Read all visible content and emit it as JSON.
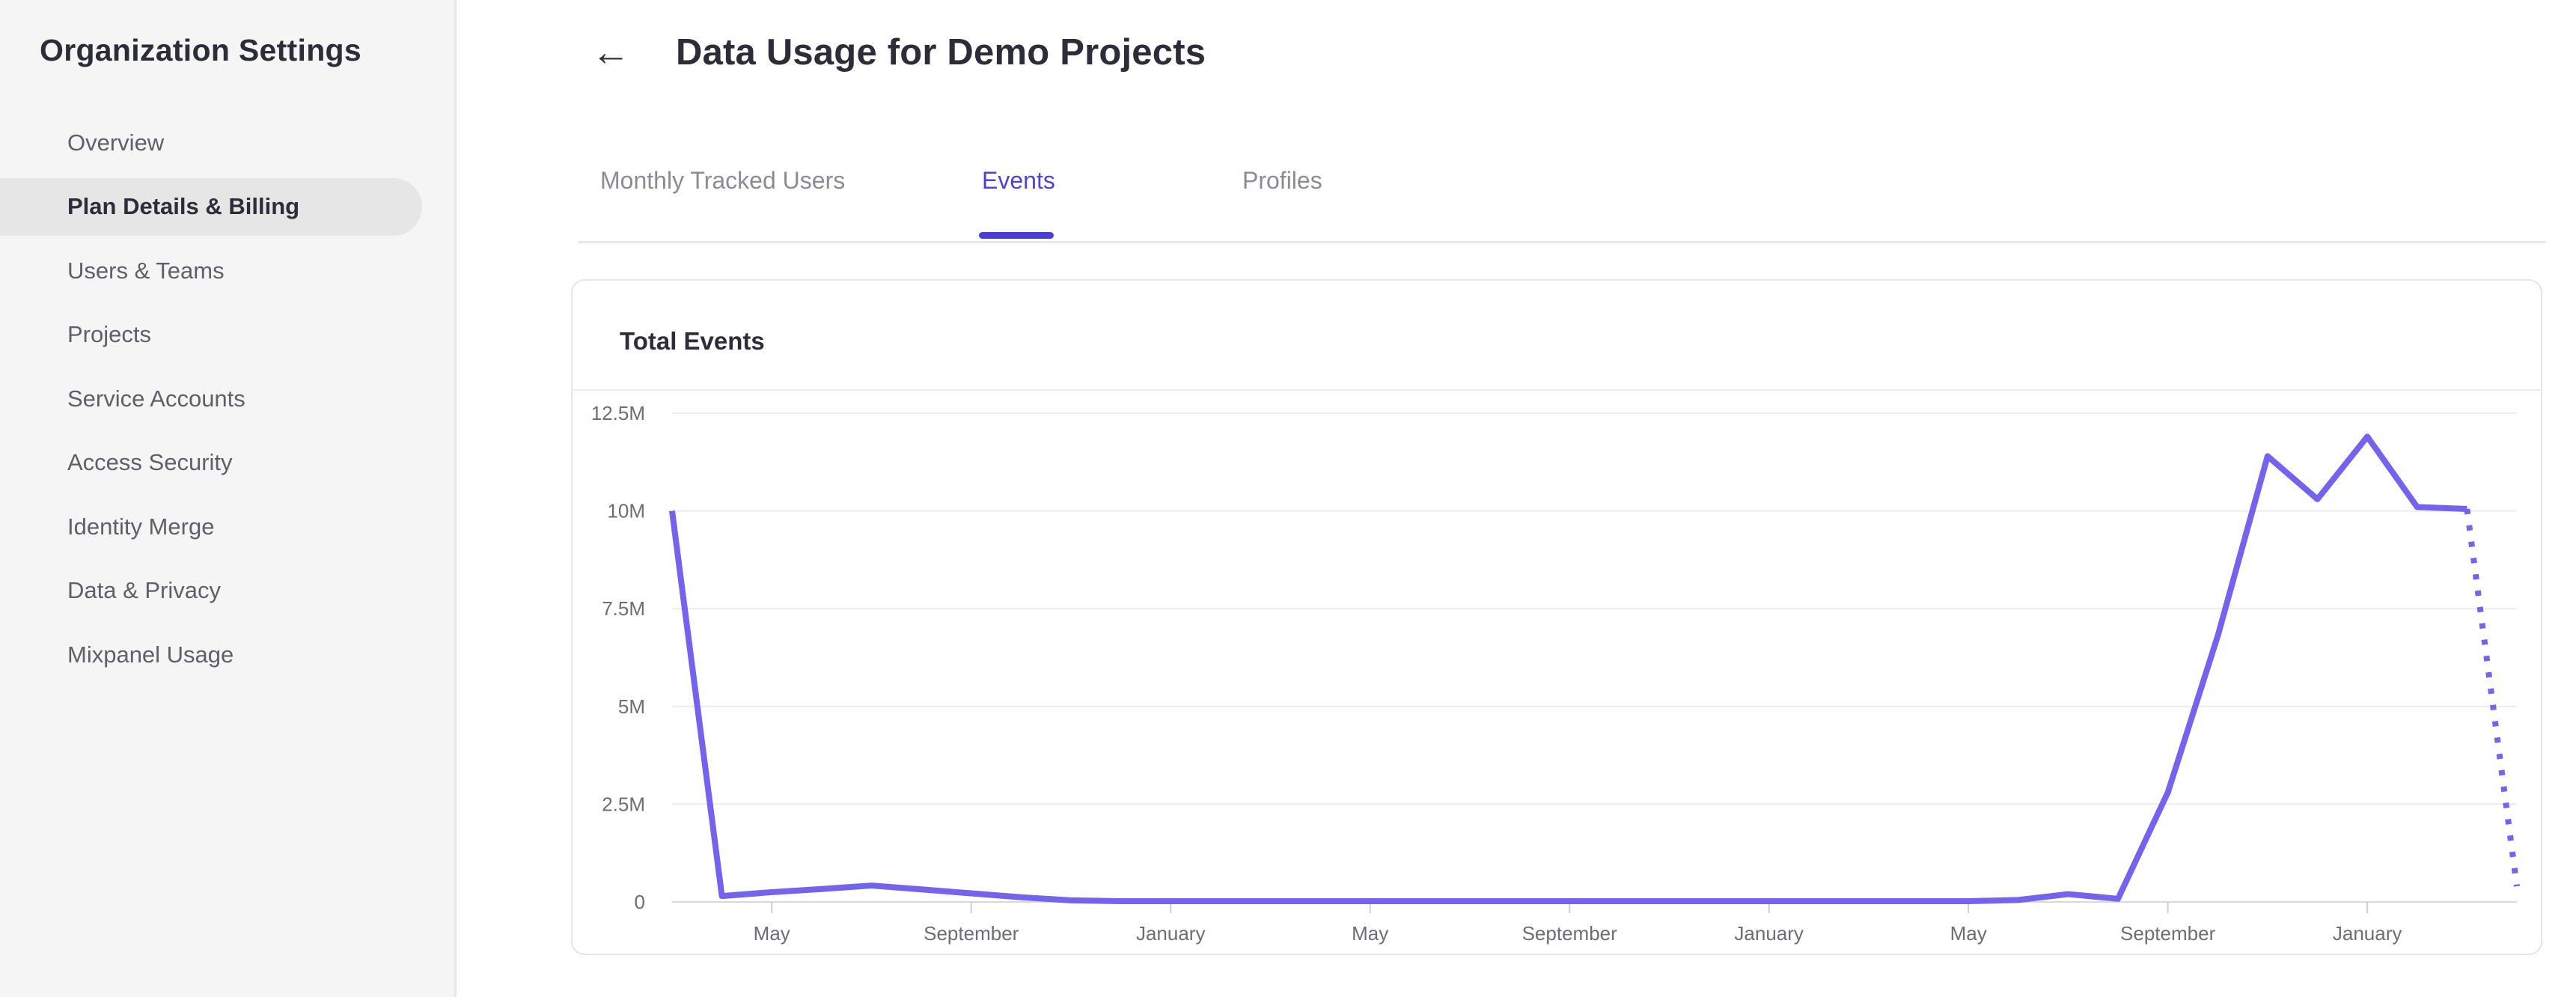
{
  "sidebar": {
    "title": "Organization Settings",
    "items": [
      {
        "label": "Overview",
        "selected": false
      },
      {
        "label": "Plan Details & Billing",
        "selected": true
      },
      {
        "label": "Users & Teams",
        "selected": false
      },
      {
        "label": "Projects",
        "selected": false
      },
      {
        "label": "Service Accounts",
        "selected": false
      },
      {
        "label": "Access Security",
        "selected": false
      },
      {
        "label": "Identity Merge",
        "selected": false
      },
      {
        "label": "Data & Privacy",
        "selected": false
      },
      {
        "label": "Mixpanel Usage",
        "selected": false
      }
    ]
  },
  "header": {
    "back_icon": "←",
    "title": "Data Usage for Demo Projects"
  },
  "tabs": [
    {
      "label": "Monthly Tracked Users",
      "active": false
    },
    {
      "label": "Events",
      "active": true
    },
    {
      "label": "Profiles",
      "active": false
    }
  ],
  "card": {
    "title": "Total Events"
  },
  "colors": {
    "accent": "#4b3ed8",
    "active_tab_text": "#4f42d9",
    "chart_line": "#7463ec",
    "gridline": "#ececec",
    "baseline": "#d8d8d8",
    "tick": "#cfcfcf",
    "axis_text": "#6d6d74",
    "sidebar_bg": "#f5f5f6",
    "selected_pill_bg": "#e6e6e7",
    "dark_text": "#2d2d38",
    "muted_text": "#5f5f67",
    "inactive_tab_text": "#8b8b93"
  },
  "chart_data": {
    "type": "line",
    "title": "Total Events",
    "value_unit": "millions of events",
    "grid": "horizontal",
    "legend": null,
    "ylim_millions": [
      0,
      12.5
    ],
    "x": [
      "2021-03",
      "2021-04",
      "2021-05",
      "2021-06",
      "2021-07",
      "2021-08",
      "2021-09",
      "2021-10",
      "2021-11",
      "2021-12",
      "2022-01",
      "2022-02",
      "2022-03",
      "2022-04",
      "2022-05",
      "2022-06",
      "2022-07",
      "2022-08",
      "2022-09",
      "2022-10",
      "2022-11",
      "2022-12",
      "2023-01",
      "2023-02",
      "2023-03",
      "2023-04",
      "2023-05",
      "2023-06",
      "2023-07",
      "2023-08",
      "2023-09",
      "2023-10",
      "2023-11",
      "2023-12",
      "2024-01",
      "2024-02",
      "2024-03",
      "2024-04"
    ],
    "values": [
      10,
      0.15,
      0.25,
      0.33,
      0.42,
      0.32,
      0.22,
      0.12,
      0.04,
      0.02,
      0.02,
      0.02,
      0.02,
      0.02,
      0.02,
      0.02,
      0.02,
      0.02,
      0.02,
      0.02,
      0.02,
      0.02,
      0.02,
      0.02,
      0.02,
      0.02,
      0.02,
      0.05,
      0.2,
      0.08,
      2.8,
      6.8,
      11.4,
      10.3,
      11.9,
      10.1,
      10.05,
      0.4
    ],
    "solid_until_index": 36,
    "dotted_segment_indices": [
      36,
      37
    ],
    "y_ticks": [
      {
        "value": 12.5,
        "label": "12.5M"
      },
      {
        "value": 10,
        "label": "10M"
      },
      {
        "value": 7.5,
        "label": "7.5M"
      },
      {
        "value": 5,
        "label": "5M"
      },
      {
        "value": 2.5,
        "label": "2.5M"
      },
      {
        "value": 0,
        "label": "0"
      }
    ],
    "x_tick_labels": [
      {
        "index": 2,
        "label": "May"
      },
      {
        "index": 6,
        "label": "September"
      },
      {
        "index": 10,
        "label": "January"
      },
      {
        "index": 14,
        "label": "May"
      },
      {
        "index": 18,
        "label": "September"
      },
      {
        "index": 22,
        "label": "January"
      },
      {
        "index": 26,
        "label": "May"
      },
      {
        "index": 30,
        "label": "September"
      },
      {
        "index": 34,
        "label": "January"
      }
    ]
  }
}
